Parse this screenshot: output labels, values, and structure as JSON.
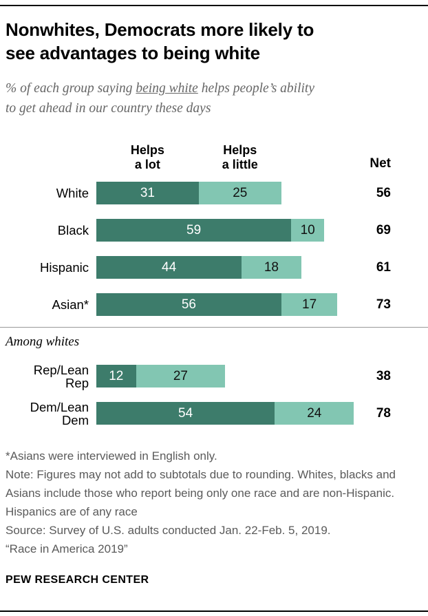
{
  "chart_data": {
    "type": "bar",
    "orientation": "horizontal",
    "stacked": true,
    "unit": "%",
    "x_range": [
      0,
      100
    ],
    "title": "Nonwhites, Democrats more likely to\nsee advantages to being white",
    "subtitle_parts": {
      "prefix": "% of each group saying ",
      "underlined": "being white",
      "suffix": " helps people’s ability\nto get ahead in our country these days"
    },
    "legend": [
      "Helps a lot",
      "Helps a little"
    ],
    "col_headers": [
      "Helps\na lot",
      "Helps\na little"
    ],
    "net_header": "Net",
    "colors": {
      "helps_a_lot": "#3d7c6b",
      "helps_a_little": "#82c6b2"
    },
    "sections": [
      {
        "label": "",
        "rows": [
          {
            "label": "White",
            "values": [
              31,
              25
            ],
            "net": 56
          },
          {
            "label": "Black",
            "values": [
              59,
              10
            ],
            "net": 69
          },
          {
            "label": "Hispanic",
            "values": [
              44,
              18
            ],
            "net": 61
          },
          {
            "label": "Asian*",
            "values": [
              56,
              17
            ],
            "net": 73
          }
        ]
      },
      {
        "label": "Among whites",
        "rows": [
          {
            "label": "Rep/Lean\nRep",
            "values": [
              12,
              27
            ],
            "net": 38
          },
          {
            "label": "Dem/Lean\nDem",
            "values": [
              54,
              24
            ],
            "net": 78
          }
        ]
      }
    ]
  },
  "footnotes": [
    "*Asians were interviewed in English only.",
    "Note: Figures may not add to subtotals due to rounding. Whites, blacks and Asians include those who report being only one race and are non-Hispanic. Hispanics are of any race",
    "Source: Survey of U.S. adults conducted Jan. 22-Feb. 5, 2019.",
    "“Race in America 2019”"
  ],
  "brand": "PEW RESEARCH CENTER"
}
